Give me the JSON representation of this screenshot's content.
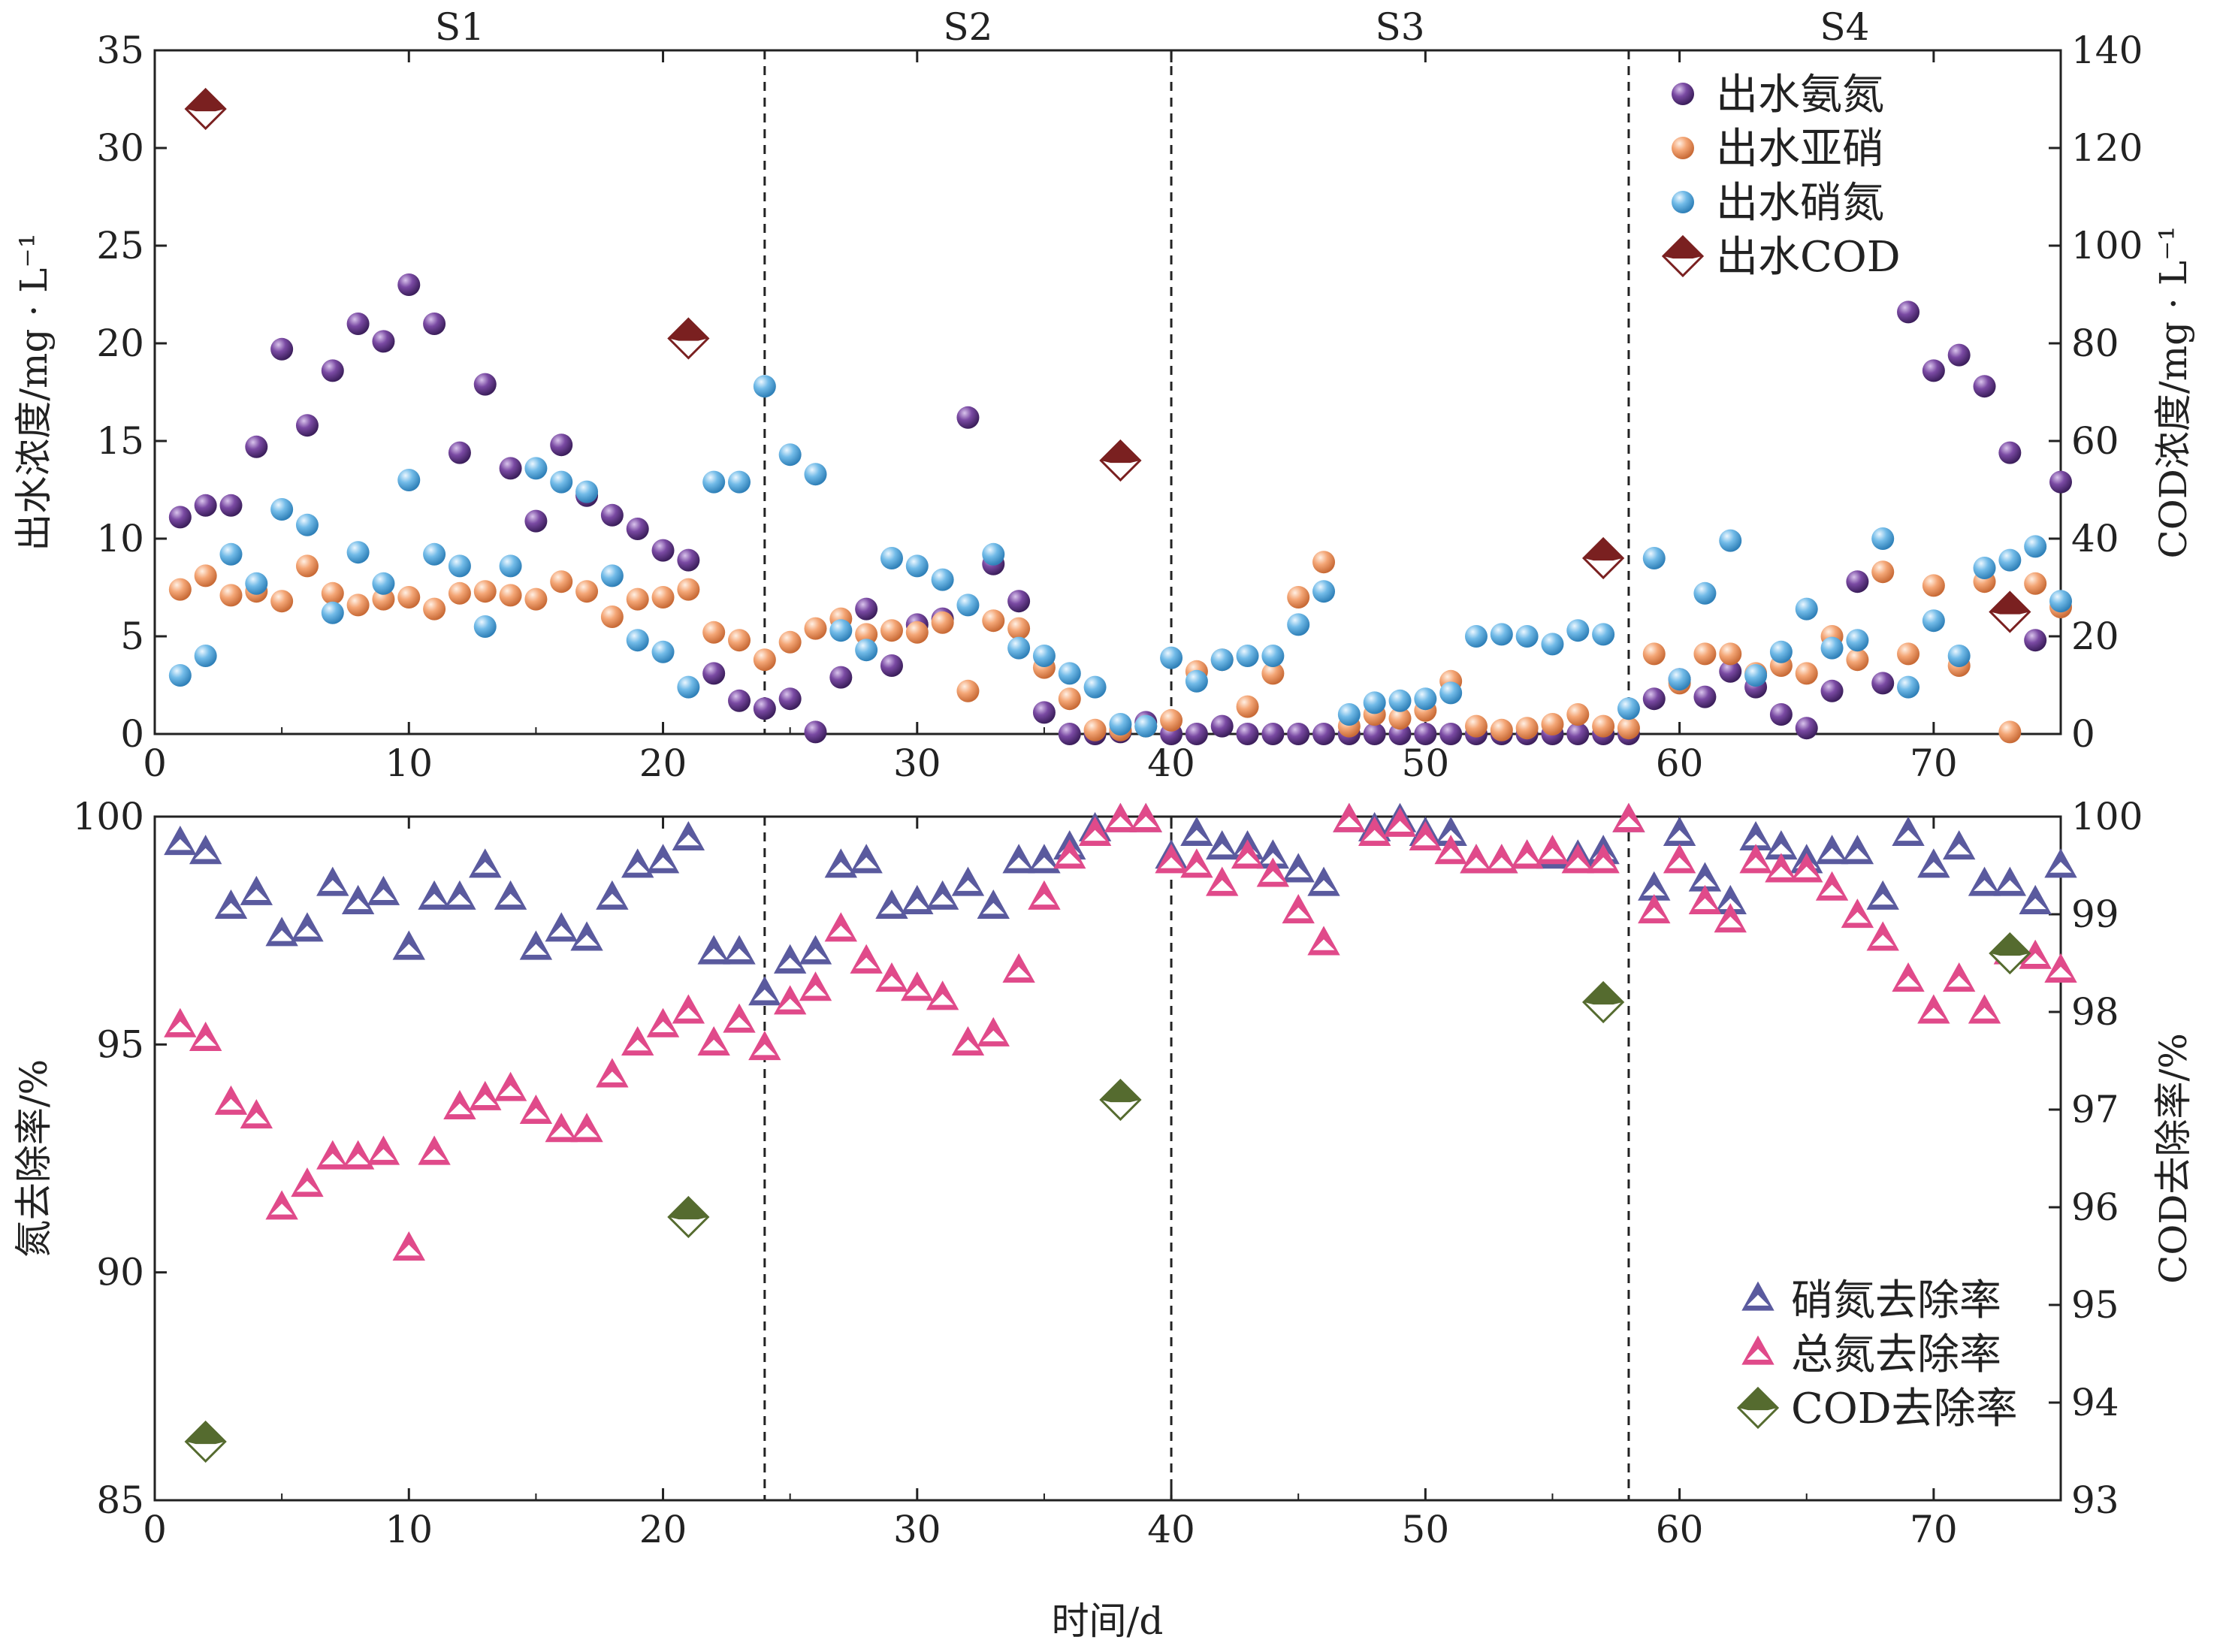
{
  "chart_data": [
    {
      "type": "scatter",
      "title": "",
      "stages": [
        {
          "label": "S1",
          "from": 0,
          "to": 24
        },
        {
          "label": "S2",
          "from": 24,
          "to": 40
        },
        {
          "label": "S3",
          "from": 40,
          "to": 58
        },
        {
          "label": "S4",
          "from": 58,
          "to": 75
        }
      ],
      "dividers": [
        24,
        40,
        58
      ],
      "xlim": [
        0,
        75
      ],
      "xticks": [
        0,
        10,
        20,
        30,
        40,
        50,
        60,
        70
      ],
      "ylabel": "出水浓度/mg · L⁻¹",
      "ylim": [
        0,
        35
      ],
      "yticks": [
        0,
        5,
        10,
        15,
        20,
        25,
        30,
        35
      ],
      "y2label": "COD浓度/mg · L⁻¹",
      "y2lim": [
        0,
        140
      ],
      "y2ticks": [
        0,
        20,
        40,
        60,
        80,
        100,
        120,
        140
      ],
      "legend_position": "top-right",
      "series": [
        {
          "name": "出水氨氮",
          "axis": "left",
          "marker": "ball",
          "color": "#6a3d8f",
          "x": [
            1,
            2,
            3,
            4,
            5,
            6,
            7,
            8,
            9,
            10,
            11,
            12,
            13,
            14,
            15,
            16,
            17,
            18,
            19,
            20,
            21,
            22,
            23,
            24,
            25,
            26,
            27,
            28,
            29,
            30,
            31,
            32,
            33,
            34,
            35,
            36,
            37,
            38,
            39,
            40,
            41,
            42,
            43,
            44,
            45,
            46,
            47,
            48,
            49,
            50,
            51,
            52,
            53,
            54,
            55,
            56,
            57,
            58,
            59,
            60,
            61,
            62,
            63,
            64,
            65,
            66,
            67,
            68,
            69,
            70,
            71,
            72,
            73,
            74,
            75
          ],
          "y": [
            11.1,
            11.7,
            11.7,
            14.7,
            19.7,
            15.8,
            18.6,
            21.0,
            20.1,
            23.0,
            21.0,
            14.4,
            17.9,
            13.6,
            10.9,
            14.8,
            12.2,
            11.2,
            10.5,
            9.4,
            8.9,
            3.1,
            1.7,
            1.3,
            1.8,
            0.1,
            2.9,
            6.4,
            3.5,
            5.6,
            5.9,
            16.2,
            8.7,
            6.8,
            1.1,
            0.0,
            0.0,
            0.1,
            0.6,
            0.0,
            0.0,
            0.4,
            0.0,
            0.0,
            0.0,
            0.0,
            0.0,
            0.0,
            0.0,
            0.0,
            0.0,
            0.0,
            0.0,
            0.0,
            0.0,
            0.0,
            0.0,
            0.0,
            1.8,
            2.8,
            1.9,
            3.2,
            2.4,
            1.0,
            0.3,
            2.2,
            7.8,
            2.6,
            21.6,
            18.6,
            19.4,
            17.8,
            14.4,
            4.8,
            12.9
          ]
        },
        {
          "name": "出水亚硝",
          "axis": "left",
          "marker": "ball",
          "color": "#f0a070",
          "x": [
            1,
            2,
            3,
            4,
            5,
            6,
            7,
            8,
            9,
            10,
            11,
            12,
            13,
            14,
            15,
            16,
            17,
            18,
            19,
            20,
            21,
            22,
            23,
            24,
            25,
            26,
            27,
            28,
            29,
            30,
            31,
            32,
            33,
            34,
            35,
            36,
            37,
            38,
            39,
            40,
            41,
            42,
            43,
            44,
            45,
            46,
            47,
            48,
            49,
            50,
            51,
            52,
            53,
            54,
            55,
            56,
            57,
            58,
            59,
            60,
            61,
            62,
            63,
            64,
            65,
            66,
            67,
            68,
            69,
            70,
            71,
            72,
            73,
            74,
            75
          ],
          "y": [
            7.4,
            8.1,
            7.1,
            7.3,
            6.8,
            8.6,
            7.2,
            6.6,
            6.9,
            7.0,
            6.4,
            7.2,
            7.3,
            7.1,
            6.9,
            7.8,
            7.3,
            6.0,
            6.9,
            7.0,
            7.4,
            5.2,
            4.8,
            3.8,
            4.7,
            5.4,
            5.9,
            5.1,
            5.3,
            5.2,
            5.7,
            2.2,
            5.8,
            5.4,
            3.4,
            1.8,
            0.2,
            0.2,
            0.4,
            0.7,
            3.2,
            3.8,
            1.4,
            3.1,
            7.0,
            8.8,
            0.4,
            1.0,
            0.8,
            1.2,
            2.7,
            0.4,
            0.2,
            0.3,
            0.5,
            1.0,
            0.4,
            0.3,
            4.1,
            2.6,
            4.1,
            4.1,
            3.1,
            3.5,
            3.1,
            5.0,
            3.8,
            8.3,
            4.1,
            7.6,
            3.5,
            7.8,
            0.1,
            7.7,
            6.5
          ]
        },
        {
          "name": "出水硝氮",
          "axis": "left",
          "marker": "ball",
          "color": "#6ab4e4",
          "x": [
            1,
            2,
            3,
            4,
            5,
            6,
            7,
            8,
            9,
            10,
            11,
            12,
            13,
            14,
            15,
            16,
            17,
            18,
            19,
            20,
            21,
            22,
            23,
            24,
            25,
            26,
            27,
            28,
            29,
            30,
            31,
            32,
            33,
            34,
            35,
            36,
            37,
            38,
            39,
            40,
            41,
            42,
            43,
            44,
            45,
            46,
            47,
            48,
            49,
            50,
            51,
            52,
            53,
            54,
            55,
            56,
            57,
            58,
            59,
            60,
            61,
            62,
            63,
            64,
            65,
            66,
            67,
            68,
            69,
            70,
            71,
            72,
            73,
            74,
            75
          ],
          "y": [
            3.0,
            4.0,
            9.2,
            7.7,
            11.5,
            10.7,
            6.2,
            9.3,
            7.7,
            13.0,
            9.2,
            8.6,
            5.5,
            8.6,
            13.6,
            12.9,
            12.4,
            8.1,
            4.8,
            4.2,
            2.4,
            12.9,
            12.9,
            17.8,
            14.3,
            13.3,
            5.3,
            4.3,
            9.0,
            8.6,
            7.9,
            6.6,
            9.2,
            4.4,
            4.0,
            3.1,
            2.4,
            0.5,
            0.4,
            3.9,
            2.7,
            3.8,
            4.0,
            4.0,
            5.6,
            7.3,
            1.0,
            1.6,
            1.7,
            1.8,
            2.1,
            5.0,
            5.1,
            5.0,
            4.6,
            5.3,
            5.1,
            1.3,
            9.0,
            2.8,
            7.2,
            9.9,
            3.0,
            4.2,
            6.4,
            4.4,
            4.8,
            10.0,
            2.4,
            5.8,
            4.0,
            8.5,
            8.9,
            9.6,
            6.8
          ]
        },
        {
          "name": "出水COD",
          "axis": "right",
          "marker": "diamond",
          "color": "#7a2020",
          "x": [
            2,
            21,
            38,
            57,
            73
          ],
          "y": [
            128,
            81,
            56,
            36,
            25
          ]
        }
      ]
    },
    {
      "type": "scatter",
      "title": "",
      "xlabel": "时间/d",
      "xlim": [
        0,
        75
      ],
      "xticks": [
        0,
        10,
        20,
        30,
        40,
        50,
        60,
        70
      ],
      "dividers": [
        24,
        40,
        58
      ],
      "ylabel": "氮去除率/%",
      "ylim": [
        85,
        100
      ],
      "yticks": [
        85,
        90,
        95,
        100
      ],
      "y2label": "COD去除率/%",
      "y2lim": [
        93,
        100
      ],
      "y2ticks": [
        93,
        94,
        95,
        96,
        97,
        98,
        99,
        100
      ],
      "legend_position": "bottom-right",
      "series": [
        {
          "name": "硝氮去除率",
          "axis": "left",
          "marker": "triangle",
          "color": "#5a5a9e",
          "x": [
            1,
            2,
            3,
            4,
            5,
            6,
            7,
            8,
            9,
            10,
            11,
            12,
            13,
            14,
            15,
            16,
            17,
            18,
            19,
            20,
            21,
            22,
            23,
            24,
            25,
            26,
            27,
            28,
            29,
            30,
            31,
            32,
            33,
            34,
            35,
            36,
            37,
            38,
            39,
            40,
            41,
            42,
            43,
            44,
            45,
            46,
            47,
            48,
            49,
            50,
            51,
            52,
            53,
            54,
            55,
            56,
            57,
            58,
            59,
            60,
            61,
            62,
            63,
            64,
            65,
            66,
            67,
            68,
            69,
            70,
            71,
            72,
            73,
            74,
            75
          ],
          "y": [
            99.4,
            99.2,
            98.0,
            98.3,
            97.4,
            97.5,
            98.5,
            98.1,
            98.3,
            97.1,
            98.2,
            98.2,
            98.9,
            98.2,
            97.1,
            97.5,
            97.3,
            98.2,
            98.9,
            99.0,
            99.5,
            97.0,
            97.0,
            96.1,
            96.8,
            97.0,
            98.9,
            99.0,
            98.0,
            98.1,
            98.2,
            98.5,
            98.0,
            99.0,
            99.0,
            99.3,
            99.7,
            99.9,
            99.9,
            99.1,
            99.6,
            99.3,
            99.3,
            99.1,
            98.8,
            98.5,
            99.9,
            99.7,
            99.9,
            99.6,
            99.6,
            99.0,
            99.0,
            99.1,
            99.1,
            99.1,
            99.2,
            99.9,
            98.4,
            99.6,
            98.6,
            98.1,
            99.5,
            99.3,
            99.0,
            99.2,
            99.2,
            98.2,
            99.6,
            98.9,
            99.3,
            98.5,
            98.5,
            98.1,
            98.9
          ]
        },
        {
          "name": "总氮去除率",
          "axis": "left",
          "marker": "triangle",
          "color": "#e04a8a",
          "x": [
            1,
            2,
            3,
            4,
            5,
            6,
            7,
            8,
            9,
            10,
            11,
            12,
            13,
            14,
            15,
            16,
            17,
            18,
            19,
            20,
            21,
            22,
            23,
            24,
            25,
            26,
            27,
            28,
            29,
            30,
            31,
            32,
            33,
            34,
            35,
            36,
            37,
            38,
            39,
            40,
            41,
            42,
            43,
            44,
            45,
            46,
            47,
            48,
            49,
            50,
            51,
            52,
            53,
            54,
            55,
            56,
            57,
            58,
            59,
            60,
            61,
            62,
            63,
            64,
            65,
            66,
            67,
            68,
            69,
            70,
            71,
            72,
            73,
            74,
            75
          ],
          "y": [
            95.4,
            95.1,
            93.7,
            93.4,
            91.4,
            91.9,
            92.5,
            92.5,
            92.6,
            90.5,
            92.6,
            93.6,
            93.8,
            94.0,
            93.5,
            93.1,
            93.1,
            94.3,
            95.0,
            95.4,
            95.7,
            95.0,
            95.5,
            94.9,
            95.9,
            96.2,
            97.5,
            96.8,
            96.4,
            96.2,
            96.0,
            95.0,
            95.2,
            96.6,
            98.2,
            99.1,
            99.6,
            99.9,
            99.9,
            99.0,
            98.9,
            98.5,
            99.1,
            98.7,
            97.9,
            97.2,
            99.9,
            99.6,
            99.8,
            99.5,
            99.2,
            99.0,
            99.0,
            99.1,
            99.2,
            99.0,
            99.0,
            99.9,
            97.9,
            99.0,
            98.1,
            97.7,
            99.0,
            98.8,
            98.8,
            98.4,
            97.8,
            97.3,
            96.4,
            95.7,
            96.4,
            95.7,
            97.0,
            96.9,
            96.6
          ]
        },
        {
          "name": "COD去除率",
          "axis": "right",
          "marker": "diamond",
          "color": "#556b2f",
          "x": [
            2,
            21,
            38,
            57,
            73
          ],
          "y": [
            93.6,
            95.9,
            97.1,
            98.1,
            98.6
          ]
        }
      ]
    }
  ]
}
